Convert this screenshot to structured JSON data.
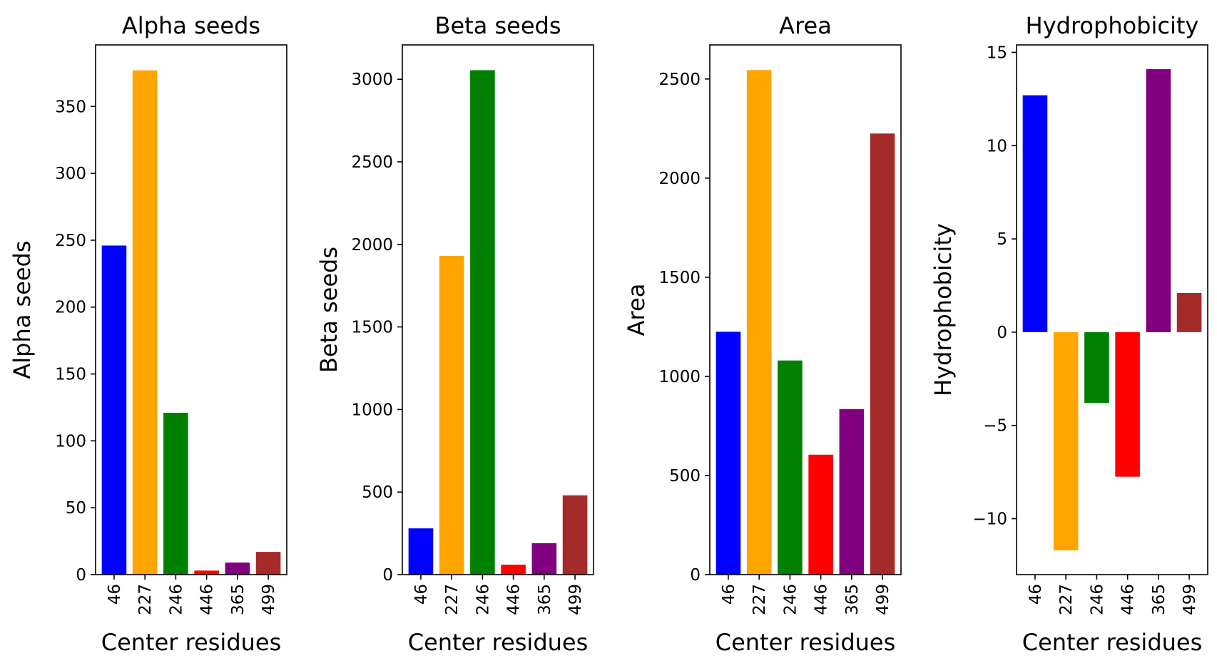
{
  "chart_data": [
    {
      "type": "bar",
      "title": "Alpha seeds",
      "xlabel": "Center residues",
      "ylabel": "Alpha seeds",
      "categories": [
        "46",
        "227",
        "246",
        "446",
        "365",
        "499"
      ],
      "values": [
        246,
        377,
        121,
        3,
        9,
        17
      ],
      "colors": [
        "#0000ff",
        "#ffa500",
        "#008000",
        "#ff0000",
        "#800080",
        "#a52a2a"
      ],
      "ylim": [
        0,
        396
      ],
      "yticks": [
        0,
        50,
        100,
        150,
        200,
        250,
        300,
        350
      ]
    },
    {
      "type": "bar",
      "title": "Beta seeds",
      "xlabel": "Center residues",
      "ylabel": "Beta seeds",
      "categories": [
        "46",
        "227",
        "246",
        "446",
        "365",
        "499"
      ],
      "values": [
        280,
        1930,
        3055,
        60,
        190,
        480
      ],
      "colors": [
        "#0000ff",
        "#ffa500",
        "#008000",
        "#ff0000",
        "#800080",
        "#a52a2a"
      ],
      "ylim": [
        0,
        3208
      ],
      "yticks": [
        0,
        500,
        1000,
        1500,
        2000,
        2500,
        3000
      ]
    },
    {
      "type": "bar",
      "title": "Area",
      "xlabel": "Center residues",
      "ylabel": "Area",
      "categories": [
        "46",
        "227",
        "246",
        "446",
        "365",
        "499"
      ],
      "values": [
        1225,
        2545,
        1080,
        605,
        835,
        2225
      ],
      "colors": [
        "#0000ff",
        "#ffa500",
        "#008000",
        "#ff0000",
        "#800080",
        "#a52a2a"
      ],
      "ylim": [
        0,
        2672
      ],
      "yticks": [
        0,
        500,
        1000,
        1500,
        2000,
        2500
      ]
    },
    {
      "type": "bar",
      "title": "Hydrophobicity",
      "xlabel": "Center residues",
      "ylabel": "Hydrophobicity",
      "categories": [
        "46",
        "227",
        "246",
        "446",
        "365",
        "499"
      ],
      "values": [
        12.7,
        -11.7,
        -3.8,
        -7.75,
        14.1,
        2.1
      ],
      "colors": [
        "#0000ff",
        "#ffa500",
        "#008000",
        "#ff0000",
        "#800080",
        "#a52a2a"
      ],
      "ylim": [
        -13.0,
        15.4
      ],
      "yticks": [
        -10,
        -5,
        0,
        5,
        10,
        15
      ]
    }
  ]
}
